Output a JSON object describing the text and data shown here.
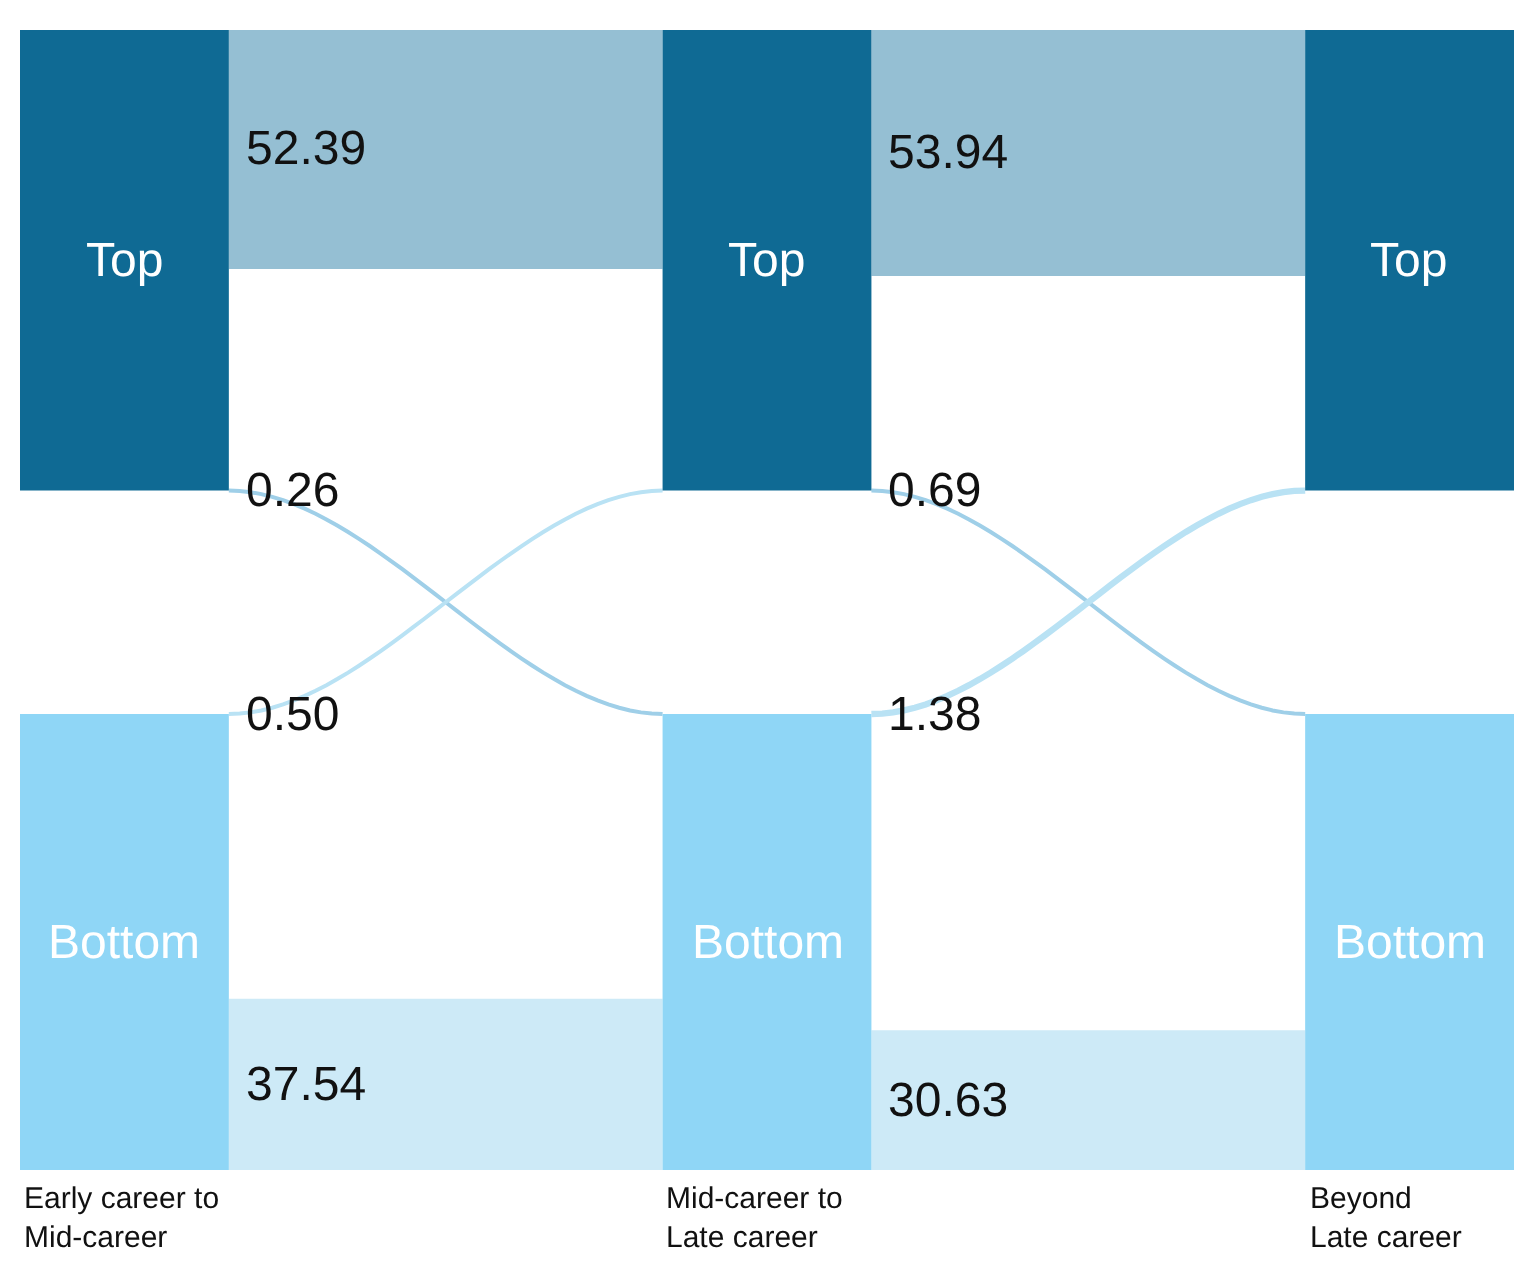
{
  "chart_data": {
    "type": "other",
    "categories": [
      "Early career to\nMid-career",
      "Mid-career to\nLate career",
      "Beyond\nLate career"
    ],
    "y_categories": [
      "Top",
      "Bottom"
    ],
    "colors": [
      "#0f6a94",
      "#8fd6f6"
    ],
    "series": [
      {
        "color": "#95bfd3",
        "values": [
          52.39,
          53.94,
          null
        ],
        "value_labels": [
          "52.39",
          "53.94",
          null
        ]
      },
      {
        "color": "#9fcfe8",
        "values": [
          0.26,
          0.69,
          null
        ],
        "value_labels": [
          "0.26",
          "0.69",
          null
        ]
      },
      {
        "color": "#b9e2f4",
        "values": [
          0.5,
          1.38,
          null
        ],
        "value_labels": [
          "0.50",
          "1.38",
          null
        ]
      },
      {
        "color": "#cdeaf7",
        "values": [
          37.54,
          30.63,
          null
        ],
        "value_labels": [
          "37.54",
          "30.63",
          null
        ]
      }
    ]
  }
}
